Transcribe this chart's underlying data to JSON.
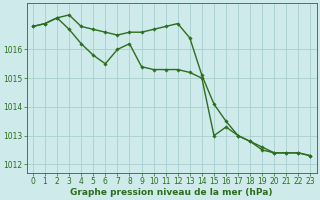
{
  "line1": {
    "x": [
      0,
      1,
      2,
      3,
      4,
      5,
      6,
      7,
      8,
      9,
      10,
      11,
      12,
      13,
      14,
      15,
      16,
      17,
      18,
      19,
      20,
      21,
      22,
      23
    ],
    "y": [
      1016.8,
      1016.9,
      1017.1,
      1017.2,
      1016.8,
      1016.7,
      1016.6,
      1016.5,
      1016.6,
      1016.6,
      1016.7,
      1016.8,
      1016.9,
      1016.4,
      1015.1,
      1014.1,
      1013.5,
      1013.0,
      1012.8,
      1012.5,
      1012.4,
      1012.4,
      1012.4,
      1012.3
    ]
  },
  "line2": {
    "x": [
      0,
      1,
      2,
      3,
      4,
      5,
      6,
      7,
      8,
      9,
      10,
      11,
      12,
      13,
      14,
      15,
      16,
      17,
      18,
      19,
      20,
      21,
      22,
      23
    ],
    "y": [
      1016.8,
      1016.9,
      1017.1,
      1016.7,
      1016.2,
      1015.8,
      1015.5,
      1016.0,
      1016.2,
      1015.4,
      1015.3,
      1015.3,
      1015.3,
      1015.2,
      1015.0,
      1013.0,
      1013.3,
      1013.0,
      1012.8,
      1012.6,
      1012.4,
      1012.4,
      1012.4,
      1012.3
    ]
  },
  "line_color": "#2d6e1e",
  "background_color": "#ceeaea",
  "grid_color": "#aacece",
  "ylim": [
    1011.7,
    1017.6
  ],
  "xlim": [
    -0.5,
    23.5
  ],
  "yticks": [
    1012,
    1013,
    1014,
    1015,
    1016
  ],
  "xticks": [
    0,
    1,
    2,
    3,
    4,
    5,
    6,
    7,
    8,
    9,
    10,
    11,
    12,
    13,
    14,
    15,
    16,
    17,
    18,
    19,
    20,
    21,
    22,
    23
  ],
  "xlabel": "Graphe pression niveau de la mer (hPa)",
  "xlabel_fontsize": 6.5,
  "axis_fontsize": 5.5,
  "marker": "D",
  "marker_size": 1.8,
  "line_width": 1.0
}
